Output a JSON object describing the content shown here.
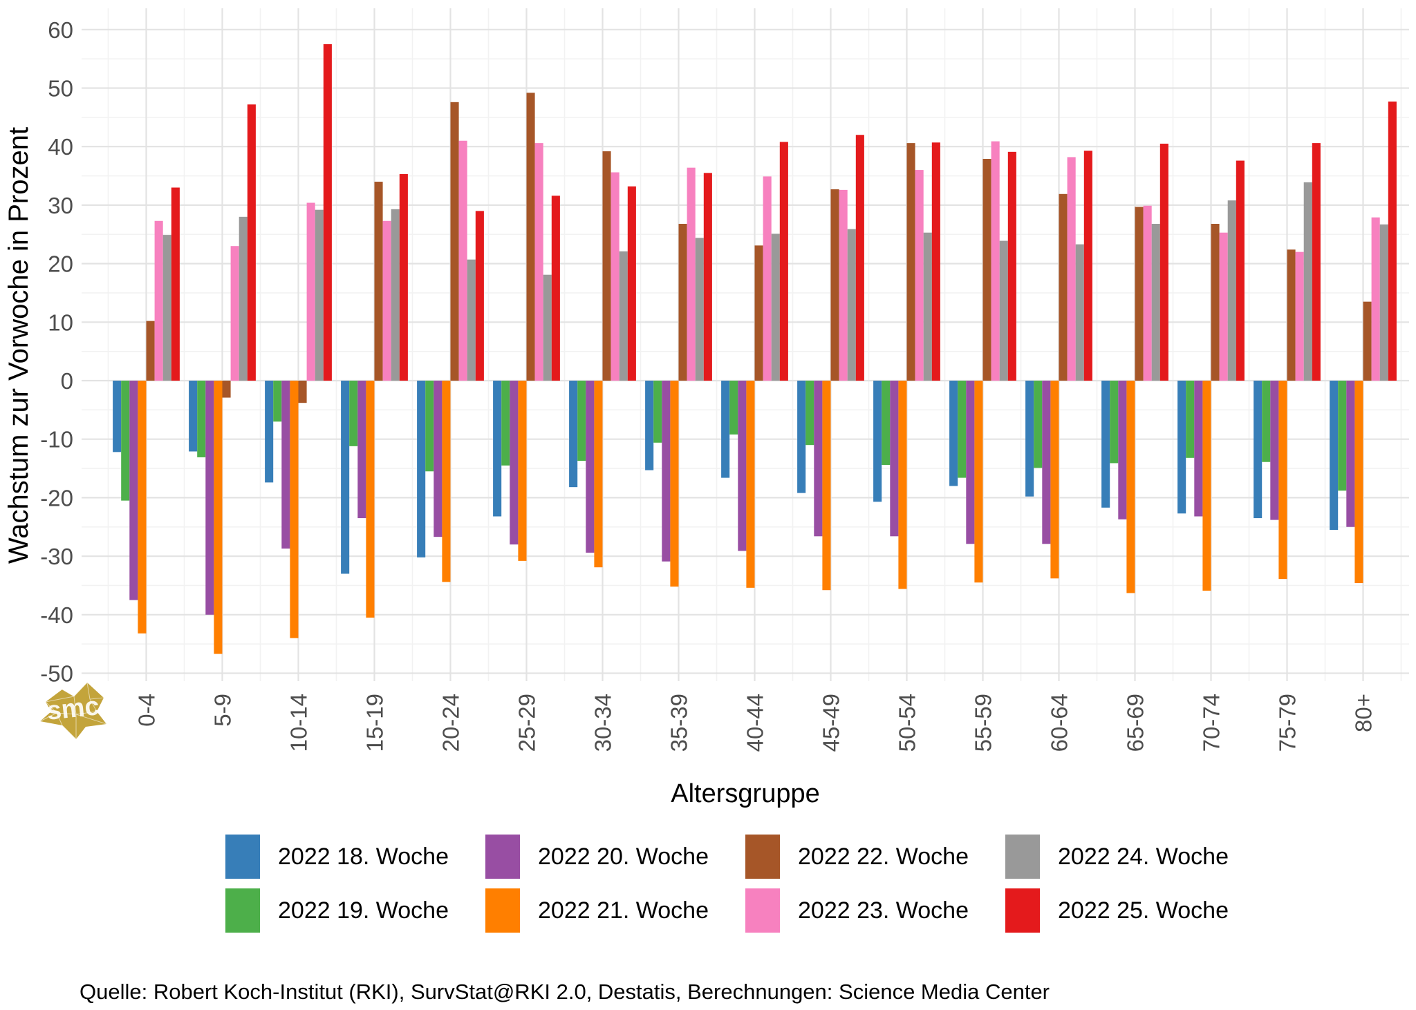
{
  "chart_data": {
    "type": "bar",
    "title": "",
    "xlabel": "Altersgruppe",
    "ylabel": "Wachstum zur Vorwoche in Prozent",
    "ylim": [
      -50,
      60
    ],
    "ytick_step": 10,
    "yticks": [
      60,
      50,
      40,
      30,
      20,
      10,
      0,
      -10,
      -20,
      -30,
      -40,
      -50
    ],
    "grid": "major and minor, light gray on white",
    "legend_position": "bottom, 4 columns x 2 rows",
    "categories": [
      "0-4",
      "5-9",
      "10-14",
      "15-19",
      "20-24",
      "25-29",
      "30-34",
      "35-39",
      "40-44",
      "45-49",
      "50-54",
      "55-59",
      "60-64",
      "65-69",
      "70-74",
      "75-79",
      "80+"
    ],
    "series": [
      {
        "name": "2022 18. Woche",
        "color": "#377EB8",
        "values": [
          -12.2,
          -12.1,
          -17.4,
          -33.0,
          -30.2,
          -23.2,
          -18.2,
          -15.3,
          -16.6,
          -19.2,
          -20.7,
          -18.0,
          -19.8,
          -21.7,
          -22.7,
          -23.5,
          -25.5
        ]
      },
      {
        "name": "2022 19. Woche",
        "color": "#4DAF4A",
        "values": [
          -20.5,
          -13.1,
          -7.0,
          -11.2,
          -15.5,
          -14.5,
          -13.7,
          -10.6,
          -9.2,
          -11.0,
          -14.4,
          -16.6,
          -14.9,
          -14.1,
          -13.2,
          -13.9,
          -18.8
        ]
      },
      {
        "name": "2022 20. Woche",
        "color": "#984EA3",
        "values": [
          -37.5,
          -40.0,
          -28.7,
          -23.5,
          -26.7,
          -28.0,
          -29.4,
          -30.9,
          -29.1,
          -26.6,
          -26.6,
          -27.9,
          -27.9,
          -23.7,
          -23.2,
          -23.8,
          -25.0
        ]
      },
      {
        "name": "2022 21. Woche",
        "color": "#FF7F00",
        "values": [
          -43.2,
          -46.7,
          -44.0,
          -40.5,
          -34.4,
          -30.8,
          -31.9,
          -35.2,
          -35.4,
          -35.8,
          -35.6,
          -34.5,
          -33.8,
          -36.3,
          -35.9,
          -33.9,
          -34.6
        ]
      },
      {
        "name": "2022 22. Woche",
        "color": "#A65628",
        "values": [
          10.2,
          -2.9,
          -3.8,
          34.0,
          47.6,
          49.2,
          39.2,
          26.8,
          23.1,
          32.7,
          40.6,
          37.9,
          31.9,
          29.7,
          26.8,
          22.4,
          13.5
        ]
      },
      {
        "name": "2022 23. Woche",
        "color": "#F781BF",
        "values": [
          27.3,
          23.0,
          30.4,
          27.3,
          41.0,
          40.6,
          35.6,
          36.4,
          34.9,
          32.6,
          36.0,
          40.9,
          38.2,
          29.9,
          25.3,
          22.0,
          27.9
        ]
      },
      {
        "name": "2022 24. Woche",
        "color": "#999999",
        "values": [
          24.9,
          28.0,
          29.2,
          29.3,
          20.7,
          18.1,
          22.1,
          24.4,
          25.1,
          25.9,
          25.3,
          23.9,
          23.3,
          26.8,
          30.8,
          33.9,
          26.7
        ]
      },
      {
        "name": "2022 25. Woche",
        "color": "#E41A1C",
        "values": [
          33.0,
          47.2,
          57.5,
          35.3,
          29.0,
          31.6,
          33.2,
          35.5,
          40.8,
          42.0,
          40.7,
          39.1,
          39.3,
          40.5,
          37.6,
          40.6,
          47.7
        ]
      }
    ],
    "legend_display_order": [
      0,
      2,
      4,
      6,
      1,
      3,
      5,
      7
    ]
  },
  "watermark": {
    "text": "smc",
    "color": "#C3A43B"
  },
  "source": {
    "text": "Quelle: Robert Koch-Institut (RKI), SurvStat@RKI 2.0, Destatis, Berechnungen: Science Media Center"
  }
}
